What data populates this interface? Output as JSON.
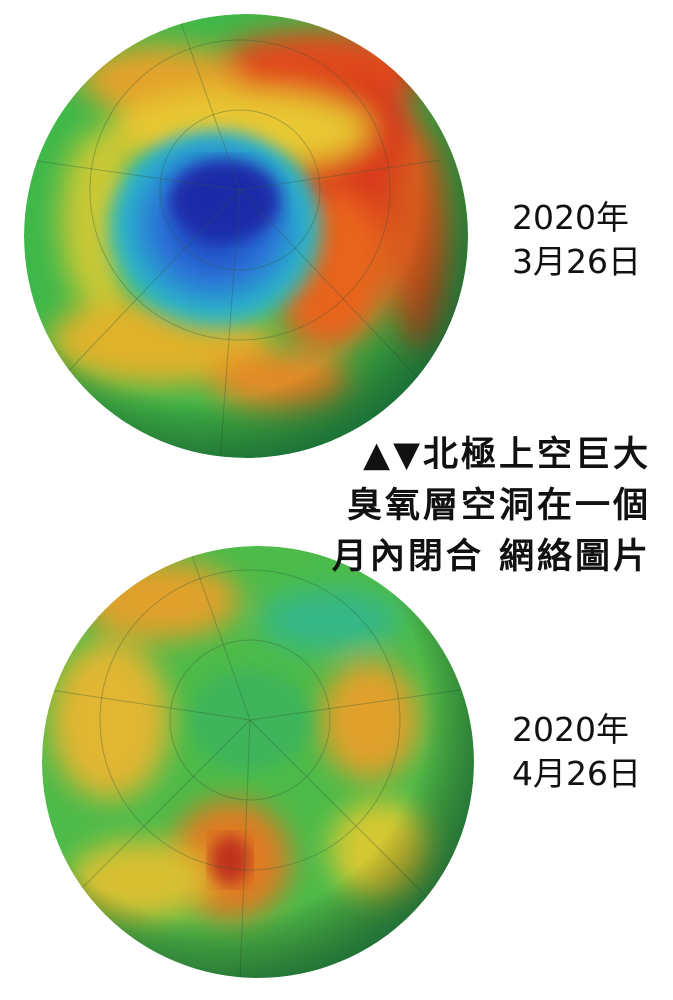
{
  "top_globe": {
    "date_line1": "2020年",
    "date_line2": "3月26日"
  },
  "caption": {
    "lines": [
      "▲▼北極上空巨大",
      "臭氧層空洞在一個",
      "月內閉合 網絡圖片"
    ]
  },
  "bottom_globe": {
    "date_line1": "2020年",
    "date_line2": "4月26日"
  }
}
